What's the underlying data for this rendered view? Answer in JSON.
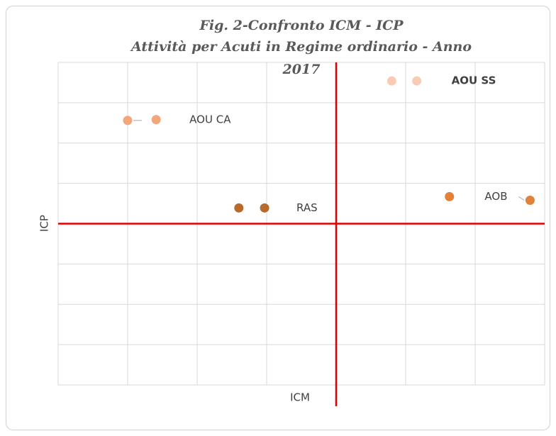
{
  "chart_data": {
    "type": "scatter",
    "title": [
      "Fig. 2-Confronto ICM - ICP",
      "Attività per Acuti in Regime ordinario - Anno",
      "2017"
    ],
    "x_label": "ICM",
    "y_label": "ICP",
    "xlim": [
      0,
      7
    ],
    "ylim": [
      0,
      8
    ],
    "xticks": [
      0,
      1,
      2,
      3,
      4,
      5,
      6,
      7
    ],
    "yticks": [
      0,
      1,
      2,
      3,
      4,
      5,
      6,
      7,
      8
    ],
    "grid": true,
    "crosshair": {
      "x": 4,
      "y": 4,
      "color": "#e00000"
    },
    "series": [
      {
        "name": "AOU SS",
        "color": "#f8cbb4",
        "x": [
          4.8,
          5.16
        ],
        "y": [
          7.54,
          7.54
        ]
      },
      {
        "name": "AOU CA",
        "color": "#f4a57a",
        "x": [
          1.0,
          1.41
        ],
        "y": [
          6.56,
          6.58
        ]
      },
      {
        "name": "RAS",
        "color": "#b86a2c",
        "x": [
          2.6,
          2.97
        ],
        "y": [
          4.39,
          4.39
        ]
      },
      {
        "name": "AOB",
        "color": "#e0823a",
        "x": [
          5.63,
          6.79
        ],
        "y": [
          4.67,
          4.58
        ]
      }
    ]
  }
}
